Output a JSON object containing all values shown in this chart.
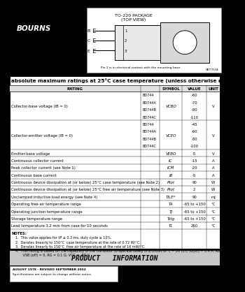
{
  "bg_color": "#000000",
  "logo_text": "BOURNS",
  "package_title": "TO-220 PACKAGE\n(TOP VIEW)",
  "pin_note": "Pin 2 is in electrical contact with the mounting base.",
  "ref_note": "NETT76CA",
  "table_title": "absolute maximum ratings at 25°C case temperature (unless otherwise noted)",
  "rows": [
    [
      "Collector-base voltage (IB = 0)",
      "BD744\nBD744A\nBD744B\nBD744C",
      "VCBO",
      "-60\n-70\n-80\n-110",
      "V"
    ],
    [
      "Collector-emitter voltage (IB = 0)",
      "BD744\nBD744A\nBD744B\nBD744C",
      "VCEO",
      "-45\n-60\n-80\n-100",
      "V"
    ],
    [
      "Emitter-base voltage",
      "",
      "VEBO",
      "-5",
      "V"
    ],
    [
      "Continuous collector current",
      "",
      "IC",
      "-15",
      "A"
    ],
    [
      "Peak collector current (see Note 1)",
      "",
      "ICM",
      "-20",
      "A"
    ],
    [
      "Continuous base current",
      "",
      "IB",
      "-5",
      "A"
    ],
    [
      "Continuous device dissipation at (or below) 25°C case temperature (see Note 2)",
      "",
      "Ptot",
      "90",
      "W"
    ],
    [
      "Continuous device dissipation at (or below) 25°C free air temperature (see Note 3)",
      "",
      "Ptot",
      "2",
      "W"
    ],
    [
      "Unclamped inductive load energy (see Note 4)",
      "",
      "TILE*",
      "90",
      "mJ"
    ],
    [
      "Operating free-air temperature range",
      "",
      "TA",
      "-65 to +150",
      "°C"
    ],
    [
      "Operating junction temperature range",
      "",
      "TJ",
      "-65 to +150",
      "°C"
    ],
    [
      "Storage temperature range",
      "",
      "Tstg",
      "-65 to +150",
      "°C"
    ],
    [
      "Lead temperature 3.2 mm from case for 10 seconds",
      "",
      "TL",
      "260",
      "°C"
    ]
  ],
  "notes_label": "NOTES:",
  "notes": [
    "1.  This value applies for tP ≤ 0.3 ms, duty cycle ≤ 10%.",
    "2.  Derates linearly to 150°C  case temperature at the rate of 0.72 W/°C.",
    "3.  Derates linearly to 150°C  free air temperature at the rate of 16 mW/°C.",
    "4.  This rating is based on the capability of the transistor to operate safely in a circuit of: L = 20 mH, IB(on) = 0.4 A, RBB = 100 Ω,\n       VSB (off) = 0, RG = 0.1 Ω, VCC = -60 V."
  ],
  "footer_title": "PRODUCT   INFORMATION",
  "footer_date": "AUGUST 1978 - REVISED SEPTEMBER 2002",
  "footer_note": "Specifications are subject to change without notice."
}
